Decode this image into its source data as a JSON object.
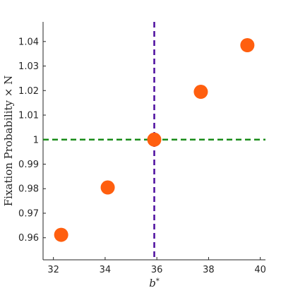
{
  "chart_data": {
    "type": "scatter",
    "ylabel": "Fixation Probability × N",
    "xlabel_base": "b",
    "xlabel_sup": "*",
    "xlim": [
      31.6,
      40.2
    ],
    "ylim": [
      0.951,
      1.048
    ],
    "xticks": [
      32,
      34,
      36,
      38,
      40
    ],
    "yticks": [
      0.96,
      0.97,
      0.98,
      0.99,
      1,
      1.01,
      1.02,
      1.03,
      1.04
    ],
    "points": [
      {
        "x": 32.3,
        "y": 0.9612
      },
      {
        "x": 34.1,
        "y": 0.9805
      },
      {
        "x": 35.9,
        "y": 1.0
      },
      {
        "x": 37.7,
        "y": 1.0195
      },
      {
        "x": 39.5,
        "y": 1.0385
      }
    ],
    "reference_lines": {
      "vertical_x": 35.9,
      "horizontal_y": 1.0
    },
    "colors": {
      "points": "#ff5f0f",
      "vertical_line": "#4b0c9e",
      "horizontal_line": "#1a8c1a",
      "axis": "#262626"
    },
    "grid": false
  }
}
